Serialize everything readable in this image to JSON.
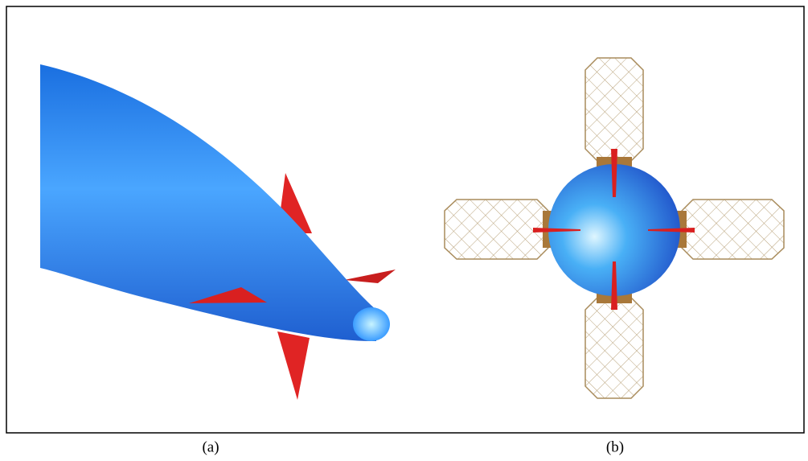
{
  "captions": [
    "(a)",
    "(b)"
  ]
}
